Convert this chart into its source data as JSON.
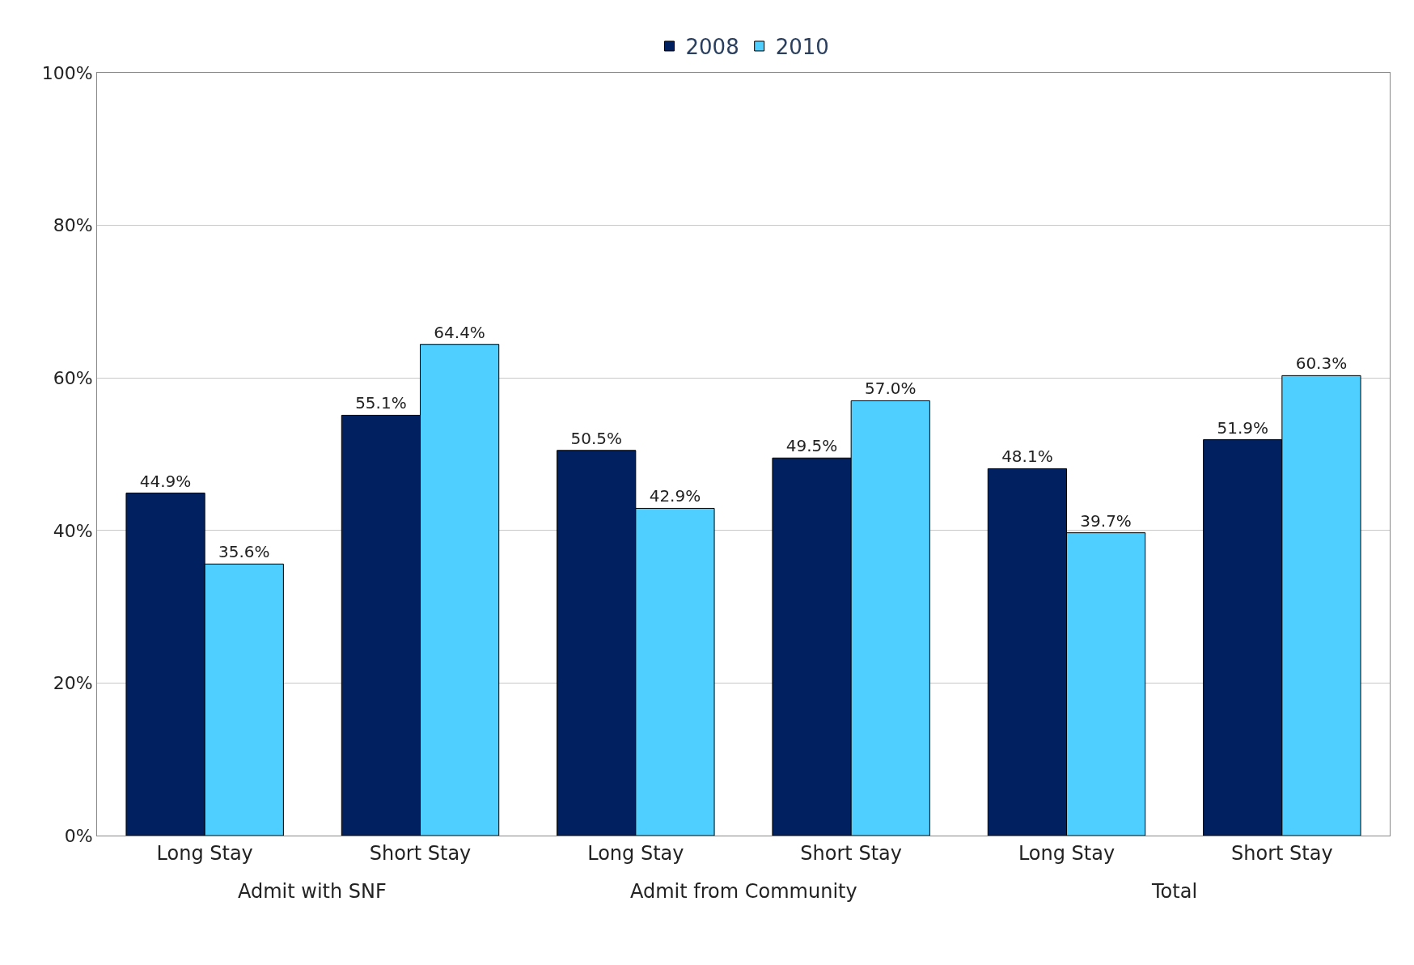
{
  "chart_data": {
    "type": "bar",
    "categories": [
      "Long Stay",
      "Short Stay",
      "Long Stay",
      "Short Stay",
      "Long Stay",
      "Short Stay"
    ],
    "series": [
      {
        "name": "2008",
        "color": "#002060",
        "values": [
          44.9,
          55.1,
          50.5,
          49.5,
          48.1,
          51.9
        ],
        "value_labels": [
          "44.9%",
          "55.1%",
          "50.5%",
          "49.5%",
          "48.1%",
          "51.9%"
        ]
      },
      {
        "name": "2010",
        "color": "#4fcfff",
        "values": [
          35.6,
          64.4,
          42.9,
          57.0,
          39.7,
          60.3
        ],
        "value_labels": [
          "35.6%",
          "64.4%",
          "42.9%",
          "57.0%",
          "39.7%",
          "60.3%"
        ]
      }
    ],
    "annotations": [
      "Admit with SNF",
      "Admit from Community",
      "Total"
    ],
    "ylim": [
      0,
      100
    ],
    "yticks": [
      {
        "value": 0,
        "label": "0%"
      },
      {
        "value": 20,
        "label": "20%"
      },
      {
        "value": 40,
        "label": "40%"
      },
      {
        "value": 60,
        "label": "60%"
      },
      {
        "value": 80,
        "label": "80%"
      },
      {
        "value": 100,
        "label": "100%"
      }
    ],
    "grid": "y",
    "legend": "top"
  }
}
